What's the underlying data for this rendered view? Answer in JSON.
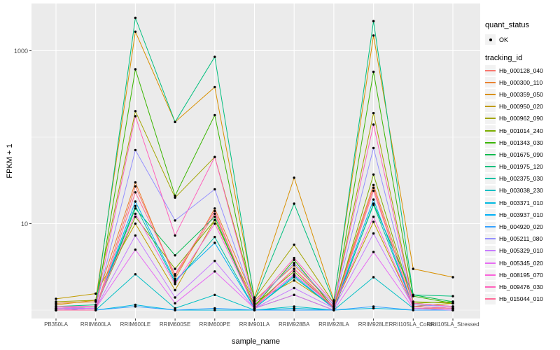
{
  "figure": {
    "background": "#FFFFFF",
    "panel_background": "#EBEBEB",
    "grid_color": "#FFFFFF",
    "tick_color": "#333333",
    "tick_label_color": "#4D4D4D",
    "point_color": "#000000"
  },
  "axes": {
    "x_title": "sample_name",
    "y_title": "FPKM + 1",
    "y_tick_labels": [
      "1000",
      "10"
    ]
  },
  "legend": {
    "quant_status_title": "quant_status",
    "quant_status_items": [
      {
        "label": "OK",
        "symbol": "point"
      }
    ],
    "tracking_id_title": "tracking_id"
  },
  "chart_data": {
    "type": "line",
    "title": "",
    "xlabel": "sample_name",
    "ylabel": "FPKM + 1",
    "y_scale": "log10",
    "y_major_ticks": [
      10,
      1000
    ],
    "y_minor_ticks": [
      1,
      100
    ],
    "grid": true,
    "legend_position": "right",
    "marker": "black-point",
    "categories": [
      "PB350LA",
      "RRIM600LA",
      "RRIM600LE",
      "RRIM600SE",
      "RRIM600PE",
      "RRIM901LA",
      "RRIM928BA",
      "RRIM928LA",
      "RRIM928LE",
      "RRII105LA_Control",
      "RRII105LA_Stressed"
    ],
    "series": [
      {
        "name": "Hb_000128_040",
        "color": "#F8766D",
        "values": [
          1.0,
          1.05,
          27,
          2.5,
          13,
          1.1,
          3.0,
          1.1,
          26,
          1.05,
          1.05
        ]
      },
      {
        "name": "Hb_000300_110",
        "color": "#EA8331",
        "values": [
          1.2,
          1.25,
          30,
          2.3,
          15,
          1.3,
          3.3,
          1.15,
          28,
          1.2,
          1.1
        ]
      },
      {
        "name": "Hb_000359_050",
        "color": "#D89000",
        "values": [
          1.15,
          1.3,
          1660,
          150,
          380,
          1.4,
          34,
          1.3,
          1500,
          3.0,
          2.4
        ]
      },
      {
        "name": "Hb_000950_020",
        "color": "#C09B00",
        "values": [
          1.35,
          1.55,
          10,
          1.7,
          11,
          1.25,
          2.2,
          1.1,
          10.5,
          1.1,
          1.2
        ]
      },
      {
        "name": "Hb_000962_090",
        "color": "#A3A500",
        "values": [
          1.25,
          1.3,
          200,
          20,
          59,
          1.35,
          5.7,
          1.2,
          190,
          1.25,
          1.2
        ]
      },
      {
        "name": "Hb_001014_240",
        "color": "#7CAE00",
        "values": [
          1.05,
          1.1,
          12,
          3.0,
          11,
          1.15,
          2.8,
          1.05,
          37,
          1.2,
          1.25
        ]
      },
      {
        "name": "Hb_001343_030",
        "color": "#39B600",
        "values": [
          1.05,
          1.05,
          610,
          21,
          180,
          1.1,
          3.8,
          1.05,
          570,
          1.45,
          1.2
        ]
      },
      {
        "name": "Hb_001675_090",
        "color": "#00BB4E",
        "values": [
          1.0,
          1.05,
          15,
          4.3,
          12,
          1.05,
          1.5,
          1.0,
          17,
          1.5,
          1.25
        ]
      },
      {
        "name": "Hb_001975_120",
        "color": "#00BF7D",
        "values": [
          1.1,
          1.15,
          2400,
          150,
          850,
          1.3,
          17,
          1.25,
          2200,
          1.5,
          1.45
        ]
      },
      {
        "name": "Hb_002375_030",
        "color": "#00C1A3",
        "values": [
          1.05,
          1.05,
          16,
          2.1,
          7.0,
          1.05,
          2.4,
          1.05,
          16.5,
          1.1,
          1.05
        ]
      },
      {
        "name": "Hb_003038_230",
        "color": "#00BFC4",
        "values": [
          1.0,
          1.0,
          2.6,
          1.05,
          1.5,
          1.0,
          1.1,
          1.0,
          2.4,
          1.05,
          1.0
        ]
      },
      {
        "name": "Hb_003371_010",
        "color": "#00BAE0",
        "values": [
          1.0,
          1.0,
          1.15,
          1.0,
          1.0,
          1.0,
          1.05,
          1.0,
          1.05,
          1.0,
          1.0
        ]
      },
      {
        "name": "Hb_003937_010",
        "color": "#00B0F6",
        "values": [
          1.0,
          1.05,
          18,
          2.2,
          6.0,
          1.05,
          2.5,
          1.05,
          19,
          1.1,
          1.05
        ]
      },
      {
        "name": "Hb_004920_020",
        "color": "#35A2FF",
        "values": [
          1.0,
          1.0,
          1.1,
          1.0,
          1.05,
          1.0,
          1.0,
          1.0,
          1.1,
          1.0,
          1.0
        ]
      },
      {
        "name": "Hb_005211_080",
        "color": "#9590FF",
        "values": [
          1.05,
          1.1,
          71,
          10.9,
          25,
          1.2,
          3.5,
          1.15,
          75,
          1.15,
          1.1
        ]
      },
      {
        "name": "Hb_005329_010",
        "color": "#C77CFF",
        "values": [
          1.05,
          1.05,
          7.3,
          1.4,
          3.7,
          1.05,
          1.8,
          1.05,
          7.7,
          1.1,
          1.05
        ]
      },
      {
        "name": "Hb_005345_020",
        "color": "#E76BF3",
        "values": [
          1.0,
          1.05,
          5.0,
          1.2,
          2.8,
          1.05,
          1.5,
          1.0,
          4.7,
          1.05,
          1.0
        ]
      },
      {
        "name": "Hb_008195_070",
        "color": "#FA62DB",
        "values": [
          1.05,
          1.1,
          13,
          2.0,
          10,
          1.1,
          2.6,
          1.1,
          12,
          1.1,
          1.05
        ]
      },
      {
        "name": "Hb_009476_030",
        "color": "#FF62BC",
        "values": [
          1.1,
          1.1,
          175,
          7.3,
          59,
          1.2,
          4.0,
          1.2,
          140,
          1.2,
          1.1
        ]
      },
      {
        "name": "Hb_015044_010",
        "color": "#FF6A98",
        "values": [
          1.0,
          1.0,
          23,
          2.6,
          14,
          1.05,
          3.0,
          1.05,
          24,
          1.1,
          1.05
        ]
      }
    ]
  }
}
